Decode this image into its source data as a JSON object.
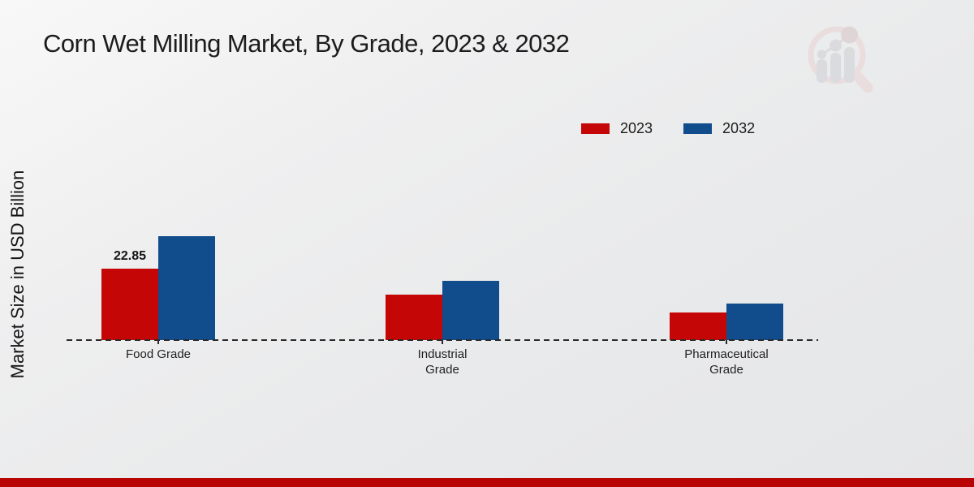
{
  "title": "Corn Wet Milling Market, By Grade, 2023 & 2032",
  "legend": {
    "items": [
      {
        "label": "2023",
        "color": "#c40606"
      },
      {
        "label": "2032",
        "color": "#114c8c"
      }
    ]
  },
  "watermark": {
    "icon": "mrfr-magnifier-barchart-logo"
  },
  "footer": {
    "accent_color": "#b90404"
  },
  "chart_data": {
    "type": "bar",
    "title": "Corn Wet Milling Market, By Grade, 2023 & 2032",
    "xlabel": "",
    "ylabel": "Market Size in USD Billion",
    "categories": [
      "Food Grade",
      "Industrial\nGrade",
      "Pharmaceutical\nGrade"
    ],
    "series": [
      {
        "name": "2023",
        "color": "#c40606",
        "values": [
          22.85,
          14.5,
          8.9
        ]
      },
      {
        "name": "2032",
        "color": "#114c8c",
        "values": [
          33.2,
          18.9,
          11.6
        ]
      }
    ],
    "bar_labels": [
      {
        "series_index": 0,
        "category_index": 0,
        "text": "22.85"
      }
    ],
    "ylim": [
      0,
      40
    ],
    "grid": false,
    "legend_position": "upper right",
    "baseline_style": "dashed",
    "y_axis_ticks_visible": false
  }
}
